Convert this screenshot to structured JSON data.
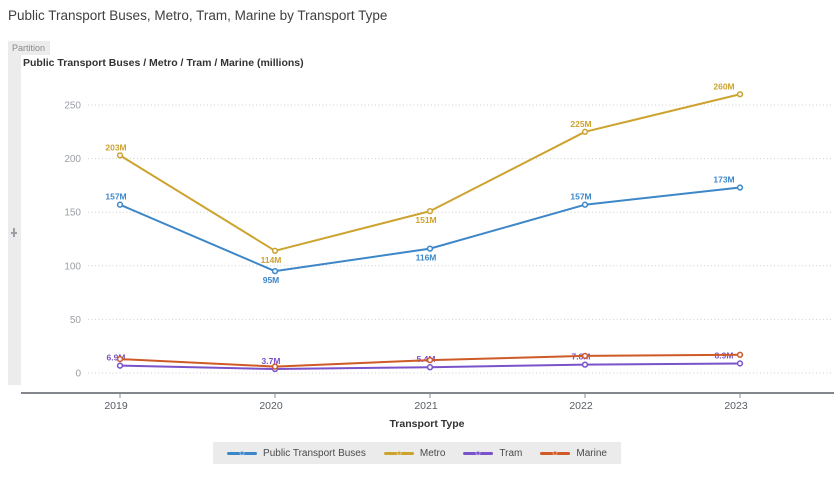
{
  "header": {
    "title": "Public Transport Buses, Metro, Tram, Marine by Transport Type"
  },
  "partition": {
    "label": "Partition"
  },
  "chart": {
    "subtitle": "Public Transport Buses / Metro / Tram / Marine (millions)",
    "x_axis_title": "Transport Type"
  },
  "chart_data": {
    "type": "line",
    "title": "Public Transport Buses / Metro / Tram / Marine (millions)",
    "xlabel": "Transport Type",
    "ylabel": "",
    "categories": [
      "2019",
      "2020",
      "2021",
      "2022",
      "2023"
    ],
    "series": [
      {
        "name": "Public Transport Buses",
        "color": "#3d87c8",
        "values": [
          157,
          95,
          116,
          157,
          173
        ],
        "labels": [
          "157M",
          "95M",
          "116M",
          "157M",
          "173M"
        ],
        "label_positions": [
          "above",
          "below",
          "below",
          "above",
          "above"
        ]
      },
      {
        "name": "Metro",
        "color": "#cda32f",
        "values": [
          203,
          114,
          151,
          225,
          260
        ],
        "labels": [
          "203M",
          "114M",
          "151M",
          "225M",
          "260M"
        ],
        "label_positions": [
          "above",
          "below",
          "below",
          "above",
          "above"
        ]
      },
      {
        "name": "Tram",
        "color": "#7a52c9",
        "values": [
          6.9,
          3.7,
          5.4,
          7.8,
          8.9
        ],
        "labels": [
          "6.9M",
          "3.7M",
          "5.4M",
          "7.8M",
          "8.9M"
        ],
        "label_positions": [
          "above",
          "above",
          "above",
          "above",
          "above"
        ]
      },
      {
        "name": "Marine",
        "color": "#ce5a28",
        "values": [
          13,
          6,
          12,
          16,
          17
        ],
        "labels": [
          "",
          "",
          "",
          "",
          ""
        ],
        "label_positions": [
          "above",
          "above",
          "above",
          "above",
          "above"
        ]
      }
    ],
    "y_ticks": [
      0,
      50,
      100,
      150,
      200,
      250
    ],
    "ylim": [
      0,
      275
    ],
    "grid": "horizontal-dotted",
    "legend_position": "bottom"
  }
}
